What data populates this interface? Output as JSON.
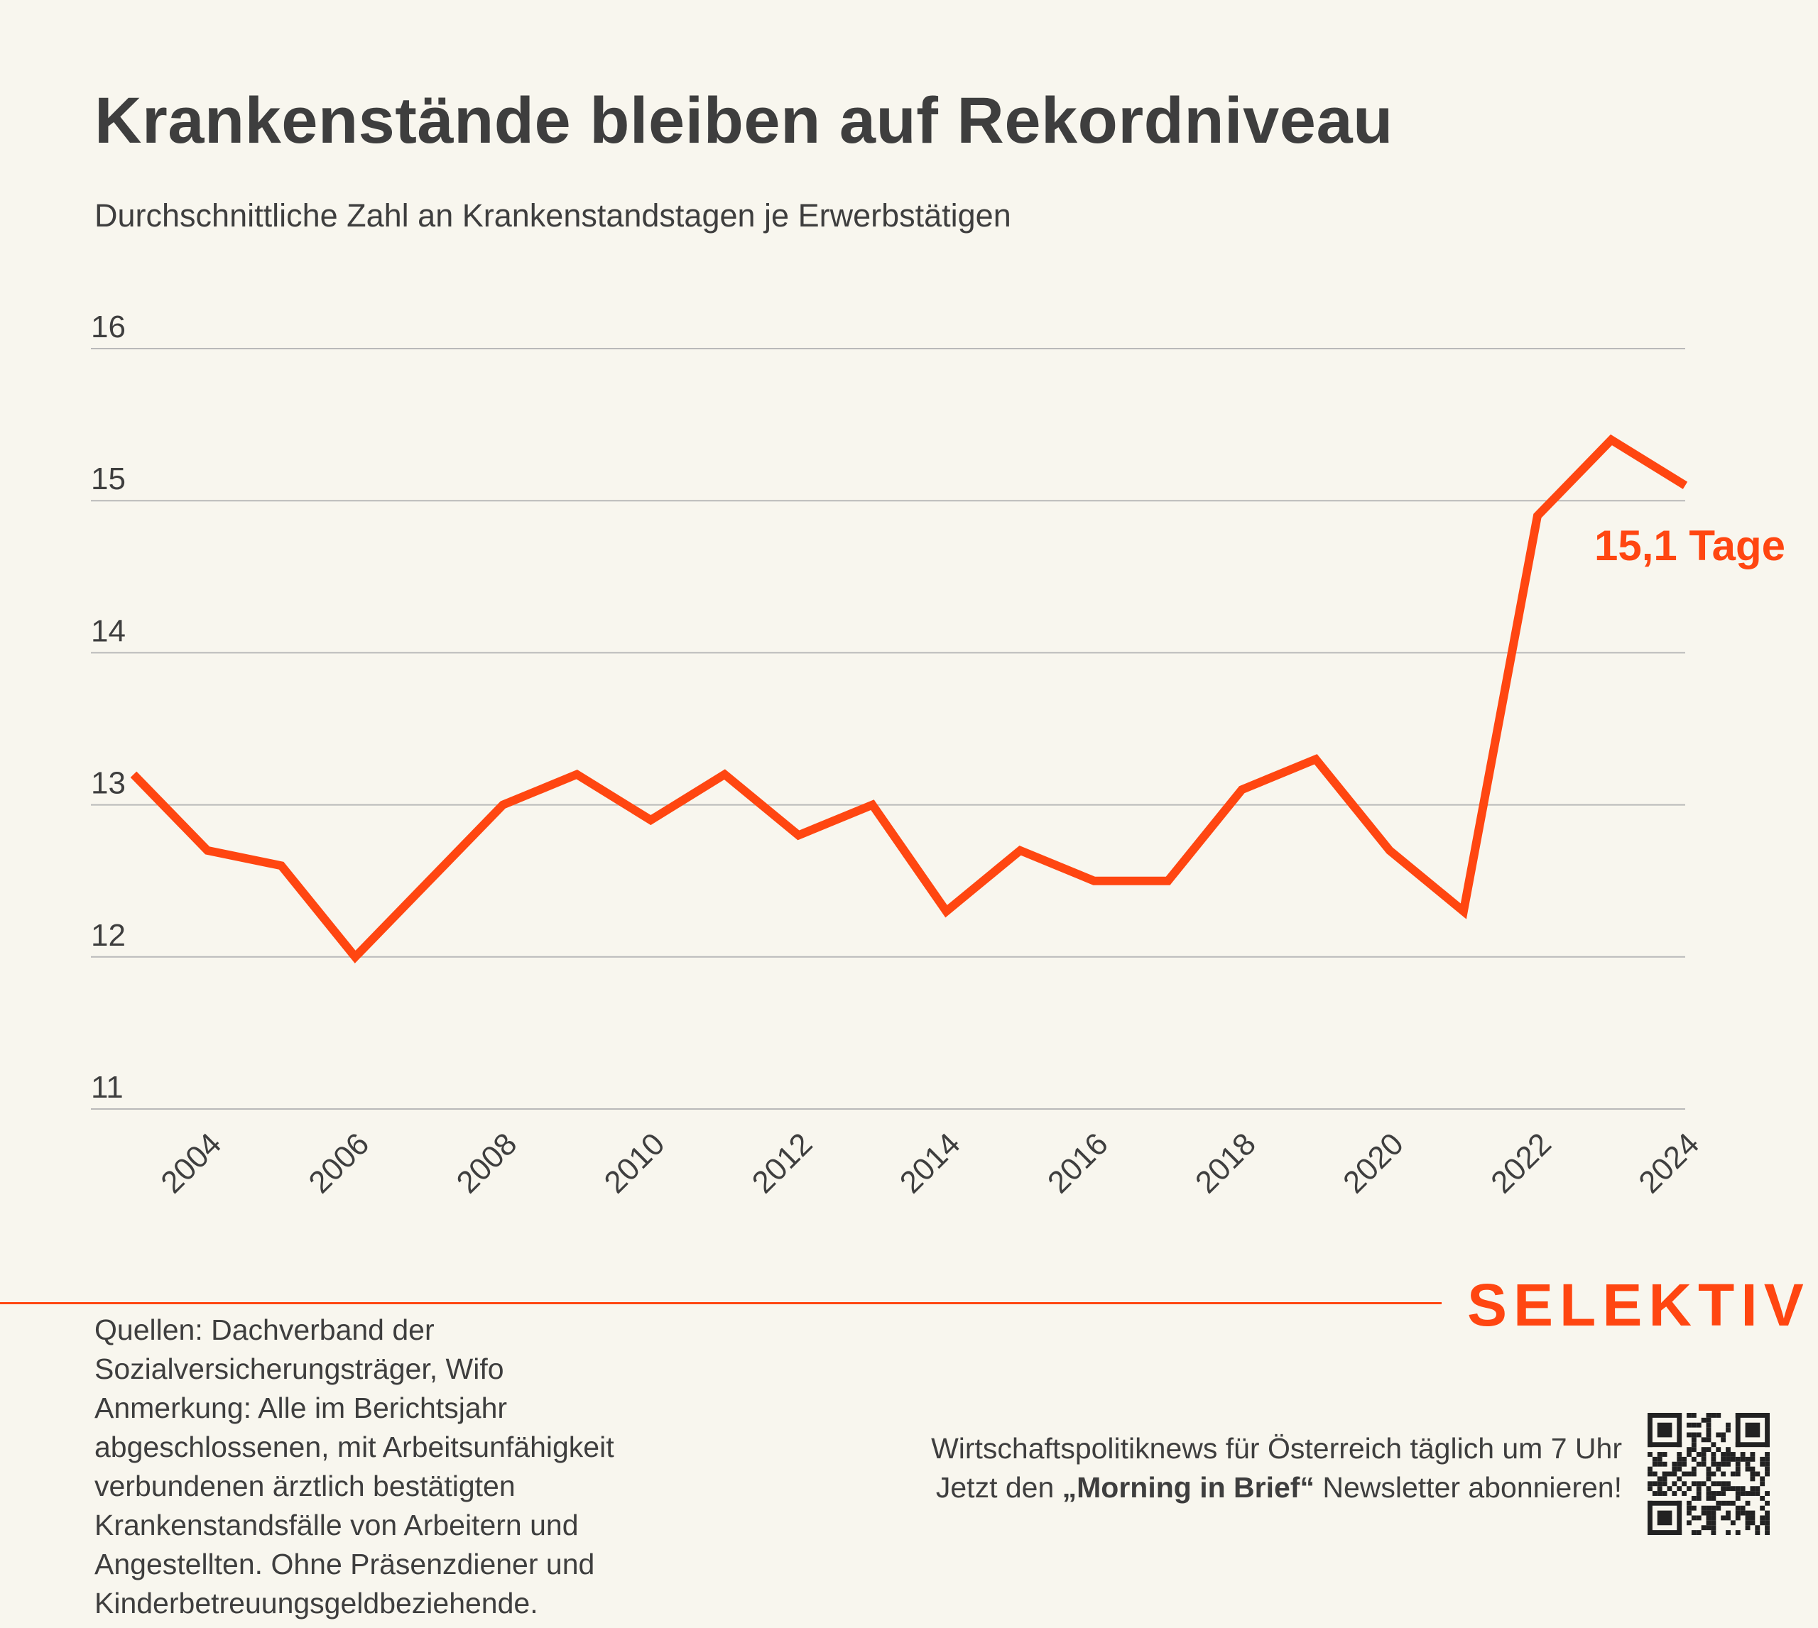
{
  "header": {
    "title": "Krankenstände bleiben auf Rekordniveau",
    "subtitle": "Durchschnittliche Zahl an Krankenstandstagen je Erwerbstätigen"
  },
  "colors": {
    "background": "#f8f6ee",
    "accent": "#ff4611",
    "text": "#3e3e3e",
    "grid": "#b9b9b9"
  },
  "chart_data": {
    "type": "line",
    "title": "Krankenstände bleiben auf Rekordniveau",
    "subtitle": "Durchschnittliche Zahl an Krankenstandstagen je Erwerbstätigen",
    "xlabel": "",
    "ylabel": "",
    "xlim": [
      2003,
      2024
    ],
    "ylim": [
      11,
      16
    ],
    "x_ticks": [
      2004,
      2006,
      2008,
      2010,
      2012,
      2014,
      2016,
      2018,
      2020,
      2022,
      2024
    ],
    "y_ticks": [
      11,
      12,
      13,
      14,
      15,
      16
    ],
    "grid": true,
    "series": [
      {
        "x": [
          2003,
          2004,
          2005,
          2006,
          2007,
          2008,
          2009,
          2010,
          2011,
          2012,
          2013,
          2014,
          2015,
          2016,
          2017,
          2018,
          2019,
          2020,
          2021,
          2022,
          2023,
          2024
        ],
        "values": [
          13.2,
          12.7,
          12.6,
          12.0,
          12.5,
          13.0,
          13.2,
          12.9,
          13.2,
          12.8,
          13.0,
          12.3,
          12.7,
          12.5,
          12.5,
          13.1,
          13.3,
          12.7,
          12.3,
          14.9,
          15.4,
          15.1
        ],
        "color": "#ff4611"
      }
    ],
    "annotations": [
      {
        "text": "15,1 Tage",
        "x": 2024,
        "y": 15.1
      }
    ]
  },
  "footer": {
    "brand": "SELEKTIV",
    "sources_line1": "Quellen: Dachverband der Sozialversicherungsträger, Wifo",
    "note": "Anmerkung: Alle im Berichtsjahr abgeschlossenen, mit Arbeitsunfähigkeit verbundenen ärztlich bestätigten Krankenstandsfälle von Arbeitern und Angestellten. Ohne Präsenzdiener und Kinderbetreuungsgeldbeziehende.",
    "promo_line1": "Wirtschaftspolitiknews für Österreich täglich um 7 Uhr",
    "promo_line2_before": "Jetzt den ",
    "promo_line2_bold": "„Morning in Brief“",
    "promo_line2_after": " Newsletter abonnieren!",
    "qr_icon": "qr-code-icon"
  }
}
